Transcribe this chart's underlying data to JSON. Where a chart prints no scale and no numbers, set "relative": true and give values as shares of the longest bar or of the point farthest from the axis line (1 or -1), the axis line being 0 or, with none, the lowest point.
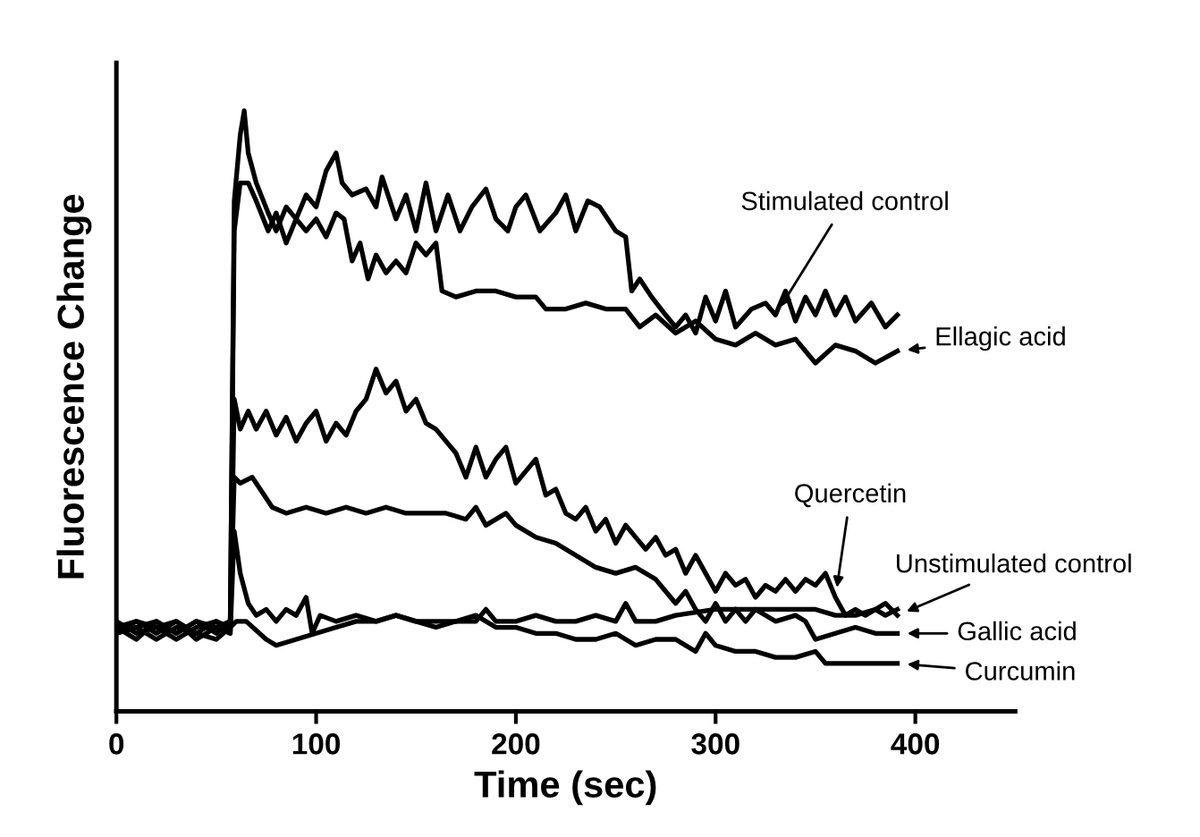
{
  "chart_data": {
    "type": "line",
    "relative": true,
    "xlabel": "Time (sec)",
    "ylabel": "Fluorescence Change",
    "annotations": [
      {
        "text": "Stimulated control",
        "x": 330,
        "y": 0.66
      },
      {
        "text": "Ellagic acid",
        "x": 391,
        "y": 0.6
      },
      {
        "text": "Quercetin",
        "x": 360,
        "y": 0.19
      },
      {
        "text": "Unstimulated control",
        "x": 391,
        "y": 0.16
      },
      {
        "text": "Gallic acid",
        "x": 391,
        "y": 0.13
      },
      {
        "text": "Curcumin",
        "x": 391,
        "y": 0.08
      }
    ],
    "xlim": [
      0,
      450
    ],
    "xticks": [
      0,
      100,
      200,
      300,
      400
    ],
    "grid": false,
    "legend": false,
    "marker": "none",
    "line_style": "solid",
    "series": [
      {
        "color": "#000000",
        "x": [
          0,
          10,
          20,
          30,
          40,
          50,
          57,
          59,
          62,
          64,
          66,
          70,
          76,
          80,
          85,
          90,
          95,
          100,
          105,
          110,
          113,
          118,
          125,
          130,
          133,
          140,
          145,
          150,
          155,
          160,
          166,
          172,
          178,
          185,
          190,
          196,
          200,
          205,
          212,
          220,
          225,
          230,
          236,
          242,
          250,
          255,
          258,
          262,
          268,
          275,
          280,
          285,
          290,
          295,
          300,
          305,
          310,
          318,
          325,
          330,
          335,
          340,
          345,
          350,
          355,
          360,
          365,
          370,
          378,
          385,
          391
        ],
        "values": [
          0.14,
          0.15,
          0.13,
          0.15,
          0.13,
          0.15,
          0.14,
          0.85,
          0.96,
          1.0,
          0.93,
          0.88,
          0.83,
          0.8,
          0.84,
          0.82,
          0.86,
          0.84,
          0.9,
          0.93,
          0.88,
          0.86,
          0.87,
          0.84,
          0.89,
          0.82,
          0.86,
          0.8,
          0.88,
          0.8,
          0.86,
          0.8,
          0.84,
          0.87,
          0.82,
          0.8,
          0.84,
          0.86,
          0.8,
          0.83,
          0.86,
          0.8,
          0.85,
          0.84,
          0.8,
          0.79,
          0.7,
          0.72,
          0.69,
          0.66,
          0.64,
          0.66,
          0.63,
          0.69,
          0.65,
          0.7,
          0.64,
          0.67,
          0.68,
          0.66,
          0.7,
          0.65,
          0.69,
          0.66,
          0.7,
          0.66,
          0.69,
          0.65,
          0.68,
          0.64,
          0.66
        ]
      },
      {
        "color": "#000000",
        "x": [
          0,
          10,
          20,
          30,
          40,
          50,
          57,
          59,
          62,
          66,
          70,
          76,
          80,
          85,
          90,
          95,
          100,
          105,
          110,
          114,
          118,
          122,
          126,
          130,
          135,
          140,
          145,
          150,
          155,
          160,
          163,
          170,
          180,
          190,
          200,
          210,
          215,
          225,
          235,
          245,
          255,
          262,
          270,
          280,
          290,
          300,
          310,
          320,
          330,
          340,
          350,
          360,
          370,
          380,
          391
        ],
        "values": [
          0.13,
          0.14,
          0.15,
          0.13,
          0.15,
          0.13,
          0.15,
          0.8,
          0.88,
          0.88,
          0.85,
          0.8,
          0.83,
          0.78,
          0.82,
          0.8,
          0.82,
          0.79,
          0.83,
          0.82,
          0.75,
          0.78,
          0.72,
          0.76,
          0.73,
          0.75,
          0.73,
          0.78,
          0.76,
          0.78,
          0.7,
          0.69,
          0.7,
          0.7,
          0.69,
          0.69,
          0.67,
          0.67,
          0.68,
          0.67,
          0.67,
          0.64,
          0.66,
          0.63,
          0.65,
          0.62,
          0.61,
          0.63,
          0.61,
          0.62,
          0.58,
          0.61,
          0.6,
          0.58,
          0.6
        ]
      },
      {
        "color": "#000000",
        "x": [
          0,
          10,
          20,
          30,
          40,
          50,
          57,
          59,
          62,
          66,
          70,
          75,
          80,
          85,
          90,
          95,
          100,
          105,
          110,
          115,
          120,
          125,
          130,
          135,
          140,
          145,
          150,
          155,
          160,
          165,
          170,
          175,
          180,
          185,
          190,
          195,
          200,
          205,
          210,
          215,
          220,
          225,
          230,
          235,
          240,
          245,
          250,
          255,
          260,
          265,
          270,
          275,
          280,
          285,
          290,
          295,
          300,
          305,
          310,
          315,
          320,
          325,
          330,
          335,
          340,
          345,
          350,
          355,
          360,
          365,
          370,
          375,
          380,
          385,
          391
        ],
        "values": [
          0.15,
          0.13,
          0.14,
          0.12,
          0.14,
          0.15,
          0.13,
          0.52,
          0.47,
          0.5,
          0.47,
          0.5,
          0.46,
          0.49,
          0.45,
          0.48,
          0.5,
          0.45,
          0.48,
          0.46,
          0.5,
          0.52,
          0.57,
          0.53,
          0.55,
          0.5,
          0.52,
          0.48,
          0.47,
          0.45,
          0.43,
          0.39,
          0.44,
          0.39,
          0.42,
          0.44,
          0.38,
          0.4,
          0.42,
          0.36,
          0.37,
          0.33,
          0.32,
          0.34,
          0.3,
          0.32,
          0.28,
          0.31,
          0.29,
          0.27,
          0.29,
          0.26,
          0.27,
          0.23,
          0.26,
          0.23,
          0.2,
          0.23,
          0.21,
          0.22,
          0.19,
          0.21,
          0.2,
          0.22,
          0.2,
          0.22,
          0.21,
          0.23,
          0.19,
          0.16,
          0.17,
          0.16,
          0.17,
          0.16,
          0.17
        ]
      },
      {
        "color": "#000000",
        "x": [
          0,
          10,
          20,
          30,
          40,
          50,
          57,
          59,
          62,
          66,
          70,
          75,
          80,
          85,
          90,
          95,
          98,
          102,
          110,
          120,
          130,
          140,
          150,
          160,
          170,
          180,
          185,
          190,
          200,
          210,
          220,
          230,
          240,
          250,
          255,
          260,
          270,
          280,
          300,
          310,
          320,
          340,
          350,
          360,
          370,
          380,
          385,
          391
        ],
        "values": [
          0.14,
          0.12,
          0.15,
          0.13,
          0.15,
          0.14,
          0.13,
          0.3,
          0.23,
          0.18,
          0.16,
          0.17,
          0.15,
          0.17,
          0.16,
          0.19,
          0.13,
          0.16,
          0.15,
          0.16,
          0.15,
          0.16,
          0.15,
          0.14,
          0.15,
          0.15,
          0.17,
          0.15,
          0.15,
          0.16,
          0.15,
          0.15,
          0.16,
          0.15,
          0.18,
          0.15,
          0.15,
          0.16,
          0.17,
          0.17,
          0.17,
          0.17,
          0.17,
          0.16,
          0.16,
          0.17,
          0.18,
          0.16
        ]
      },
      {
        "color": "#000000",
        "x": [
          0,
          10,
          20,
          30,
          40,
          50,
          57,
          59,
          62,
          68,
          74,
          78,
          85,
          95,
          105,
          115,
          125,
          135,
          145,
          155,
          165,
          175,
          180,
          185,
          195,
          200,
          210,
          220,
          230,
          240,
          250,
          260,
          270,
          275,
          280,
          285,
          290,
          295,
          300,
          305,
          310,
          315,
          320,
          330,
          340,
          345,
          350,
          360,
          370,
          380,
          391
        ],
        "values": [
          0.13,
          0.15,
          0.14,
          0.15,
          0.12,
          0.14,
          0.15,
          0.39,
          0.38,
          0.39,
          0.36,
          0.34,
          0.33,
          0.34,
          0.33,
          0.34,
          0.33,
          0.34,
          0.33,
          0.33,
          0.33,
          0.32,
          0.34,
          0.31,
          0.33,
          0.31,
          0.29,
          0.28,
          0.26,
          0.24,
          0.23,
          0.24,
          0.22,
          0.2,
          0.18,
          0.2,
          0.17,
          0.15,
          0.18,
          0.15,
          0.17,
          0.15,
          0.17,
          0.15,
          0.16,
          0.15,
          0.12,
          0.13,
          0.14,
          0.13,
          0.13
        ]
      },
      {
        "color": "#000000",
        "x": [
          0,
          10,
          20,
          30,
          40,
          50,
          57,
          60,
          65,
          75,
          80,
          90,
          100,
          110,
          120,
          130,
          140,
          150,
          160,
          170,
          180,
          190,
          200,
          210,
          220,
          230,
          240,
          250,
          260,
          270,
          280,
          290,
          295,
          300,
          310,
          320,
          330,
          340,
          350,
          355,
          360,
          370,
          380,
          391
        ],
        "values": [
          0.13,
          0.14,
          0.12,
          0.14,
          0.13,
          0.12,
          0.14,
          0.15,
          0.15,
          0.12,
          0.11,
          0.12,
          0.13,
          0.14,
          0.15,
          0.15,
          0.16,
          0.15,
          0.15,
          0.15,
          0.16,
          0.14,
          0.14,
          0.13,
          0.13,
          0.12,
          0.12,
          0.13,
          0.11,
          0.12,
          0.12,
          0.1,
          0.13,
          0.11,
          0.1,
          0.1,
          0.09,
          0.09,
          0.1,
          0.08,
          0.08,
          0.08,
          0.08,
          0.08
        ]
      }
    ]
  }
}
